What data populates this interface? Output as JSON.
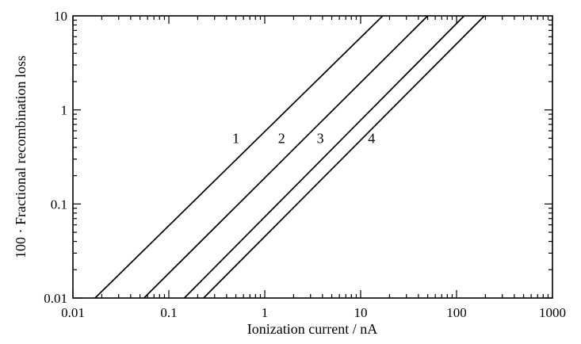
{
  "chart_data": {
    "type": "line",
    "xlabel": "Ionization current / nA",
    "ylabel": "100 · Fractional recombination loss",
    "x_scale": "log",
    "y_scale": "log",
    "xlim": [
      0.01,
      1000
    ],
    "ylim": [
      0.01,
      10
    ],
    "x_ticks": [
      {
        "value": 0.01,
        "label": "0.01"
      },
      {
        "value": 0.1,
        "label": "0.1"
      },
      {
        "value": 1,
        "label": "1"
      },
      {
        "value": 10,
        "label": "10"
      },
      {
        "value": 100,
        "label": "100"
      },
      {
        "value": 1000,
        "label": "1000"
      }
    ],
    "y_ticks": [
      {
        "value": 0.01,
        "label": "0.01"
      },
      {
        "value": 0.1,
        "label": "0.1"
      },
      {
        "value": 1,
        "label": "1"
      },
      {
        "value": 10,
        "label": "10"
      }
    ],
    "grid": false,
    "series": [
      {
        "name": "1",
        "x": [
          0.017,
          17
        ],
        "y": [
          0.01,
          10
        ],
        "label_at": [
          0.5,
          0.5
        ]
      },
      {
        "name": "2",
        "x": [
          0.055,
          50
        ],
        "y": [
          0.01,
          10
        ],
        "label_at": [
          1.5,
          0.5
        ]
      },
      {
        "name": "3",
        "x": [
          0.145,
          120
        ],
        "y": [
          0.01,
          10
        ],
        "label_at": [
          3.8,
          0.5
        ]
      },
      {
        "name": "4",
        "x": [
          0.23,
          195
        ],
        "y": [
          0.01,
          10
        ],
        "label_at": [
          13,
          0.5
        ]
      }
    ],
    "line_color": "#000000"
  }
}
